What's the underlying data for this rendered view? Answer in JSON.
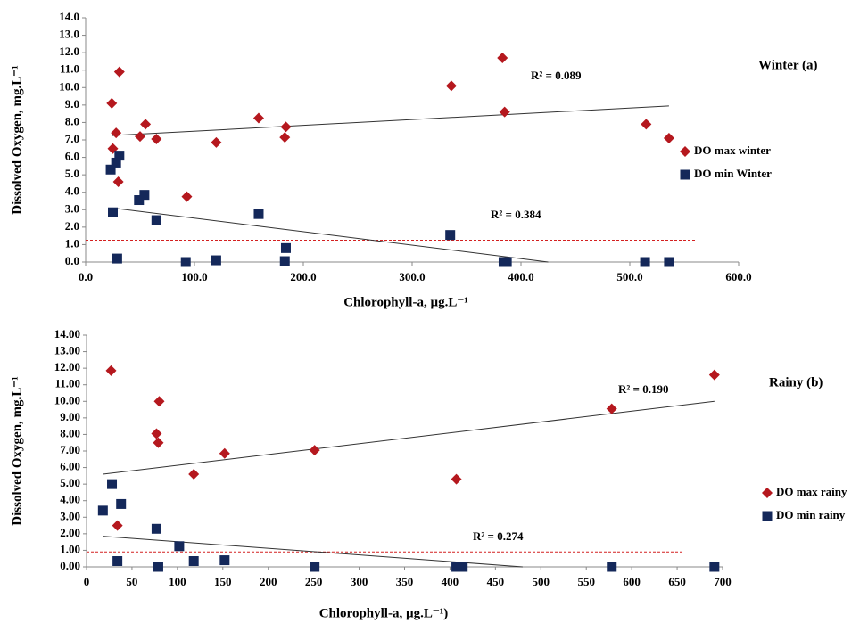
{
  "chart_data": [
    {
      "type": "scatter",
      "title": "Winter (a)",
      "x_label": "Chlorophyll-a,  µg.L⁻¹",
      "y_label": "Dissolved Oxygen,  mg.L⁻¹",
      "annotations": [
        "R² = 0.089",
        "R² = 0.384"
      ],
      "xlim": [
        0,
        600
      ],
      "ylim": [
        0,
        14
      ],
      "xticks": [
        {
          "value": 0,
          "label": "0.0"
        },
        {
          "value": 100,
          "label": "100.0"
        },
        {
          "value": 200,
          "label": "200.0"
        },
        {
          "value": 300,
          "label": "300.0"
        },
        {
          "value": 400,
          "label": "400.0"
        },
        {
          "value": 500,
          "label": "500.0"
        },
        {
          "value": 600,
          "label": "600.0"
        }
      ],
      "yticks": [
        {
          "value": 0,
          "label": "0.0"
        },
        {
          "value": 1,
          "label": "1.0"
        },
        {
          "value": 2,
          "label": "2.0"
        },
        {
          "value": 3,
          "label": "3.0"
        },
        {
          "value": 4,
          "label": "4.0"
        },
        {
          "value": 5,
          "label": "5.0"
        },
        {
          "value": 6,
          "label": "6.0"
        },
        {
          "value": 7,
          "label": "7.0"
        },
        {
          "value": 8,
          "label": "8.0"
        },
        {
          "value": 9,
          "label": "9.0"
        },
        {
          "value": 10,
          "label": "10.0"
        },
        {
          "value": 11,
          "label": "11.0"
        },
        {
          "value": 12,
          "label": "12.0"
        },
        {
          "value": 13,
          "label": "13.0"
        },
        {
          "value": 14,
          "label": "14.0"
        }
      ],
      "reference_line": {
        "y": 1.25,
        "x": [
          0,
          560
        ],
        "color": "#d42020"
      },
      "series": [
        {
          "name": "DO max winter",
          "marker": "diamond",
          "color": "#b5181e",
          "x": [
            24,
            31,
            28,
            25,
            30,
            50,
            55,
            65,
            93,
            120,
            159,
            183,
            184,
            336,
            383,
            385,
            515,
            536
          ],
          "values": [
            9.1,
            10.9,
            7.4,
            6.5,
            4.6,
            7.2,
            7.9,
            7.05,
            3.75,
            6.85,
            8.25,
            7.15,
            7.75,
            10.1,
            11.7,
            8.6,
            7.9,
            7.1
          ],
          "trend": {
            "x": [
              24,
              536
            ],
            "y": [
              7.25,
              8.95
            ]
          }
        },
        {
          "name": "DO min Winter",
          "marker": "square",
          "color": "#14285a",
          "x": [
            23,
            28,
            31,
            25,
            49,
            54,
            65,
            29,
            92,
            120,
            159,
            183,
            184,
            335,
            384,
            387,
            514,
            536
          ],
          "values": [
            5.3,
            5.7,
            6.1,
            2.85,
            3.55,
            3.85,
            2.4,
            0.2,
            0,
            0.1,
            2.75,
            0.05,
            0.8,
            1.55,
            0,
            0,
            0,
            0
          ],
          "trend": {
            "x": [
              24,
              425
            ],
            "y": [
              3.1,
              0
            ]
          }
        }
      ]
    },
    {
      "type": "scatter",
      "title": "Rainy (b)",
      "x_label": "Chlorophyll-a, µg.L⁻¹)",
      "y_label": "Dissolved Oxygen,  mg.L⁻¹",
      "annotations": [
        "R² = 0.190",
        "R² = 0.274"
      ],
      "xlim": [
        0,
        700
      ],
      "ylim": [
        0,
        14
      ],
      "xticks": [
        0,
        50,
        100,
        150,
        200,
        250,
        300,
        350,
        400,
        450,
        500,
        550,
        600,
        650,
        700
      ],
      "yticks": [
        {
          "value": 0,
          "label": "0.00"
        },
        {
          "value": 1,
          "label": "1.00"
        },
        {
          "value": 2,
          "label": "2.00"
        },
        {
          "value": 3,
          "label": "3.00"
        },
        {
          "value": 4,
          "label": "4.00"
        },
        {
          "value": 5,
          "label": "5.00"
        },
        {
          "value": 6,
          "label": "6.00"
        },
        {
          "value": 7,
          "label": "7.00"
        },
        {
          "value": 8,
          "label": "8.00"
        },
        {
          "value": 9,
          "label": "9.00"
        },
        {
          "value": 10,
          "label": "10.00"
        },
        {
          "value": 11,
          "label": "11.00"
        },
        {
          "value": 12,
          "label": "12.00"
        },
        {
          "value": 13,
          "label": "13.00"
        },
        {
          "value": 14,
          "label": "14.00"
        }
      ],
      "reference_line": {
        "y": 0.9,
        "x": [
          0,
          655
        ],
        "color": "#d42020"
      },
      "series": [
        {
          "name": "DO max rainy",
          "marker": "diamond",
          "color": "#b5181e",
          "x": [
            27,
            80,
            77,
            79,
            118,
            152,
            251,
            407,
            578,
            691,
            34
          ],
          "values": [
            11.85,
            10.0,
            8.05,
            7.5,
            5.6,
            6.85,
            7.05,
            5.3,
            9.55,
            11.6,
            2.5
          ],
          "trend": {
            "x": [
              18,
              691
            ],
            "y": [
              5.6,
              10.0
            ]
          }
        },
        {
          "name": "DO min rainy",
          "marker": "square",
          "color": "#14285a",
          "x": [
            18,
            28,
            38,
            77,
            102,
            34,
            79,
            118,
            152,
            251,
            407,
            414,
            578,
            691
          ],
          "values": [
            3.4,
            5.0,
            3.8,
            2.3,
            1.25,
            0.35,
            0,
            0.35,
            0.4,
            0,
            0,
            0,
            0,
            0
          ],
          "trend": {
            "x": [
              18,
              480
            ],
            "y": [
              1.85,
              0
            ]
          }
        }
      ]
    }
  ]
}
